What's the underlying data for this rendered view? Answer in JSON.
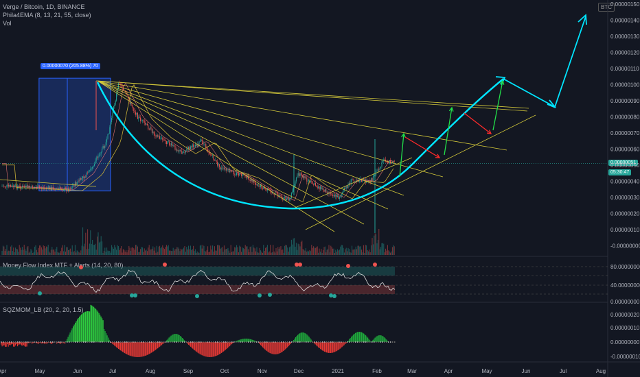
{
  "header": {
    "symbol": "Verge / Bitcoin, 1D, BINANCE",
    "indicator1": "Phila4EMA (8, 13, 21, 55, close)",
    "indicator2": "Vol",
    "currency_badge": "BTC"
  },
  "price_axis": {
    "labels": [
      "0.00000150",
      "0.00000140",
      "0.00000130",
      "0.00000120",
      "0.00000110",
      "0.00000100",
      "0.00000090",
      "0.00000080",
      "0.00000070",
      "0.00000060",
      "0.00000050",
      "0.00000040",
      "0.00000030",
      "0.00000020",
      "0.00000010",
      "-0.00000000"
    ],
    "last_price": "0.00000051",
    "countdown": "05:30:47"
  },
  "mfi_panel": {
    "title": "Money Flow Index MTF + Alerts (14, 20, 80)",
    "labels": [
      "80.00000000",
      "40.00000000",
      "0.00000000"
    ]
  },
  "mom_panel": {
    "title": "SQZMOM_LB (20, 2, 20, 1.5)",
    "labels": [
      "0.00000020",
      "0.00000010",
      "0.00000000",
      "-0.00000010"
    ]
  },
  "measure_label": "0.00000070 (205.88%) 70",
  "time_axis": [
    "Apr",
    "May",
    "Jun",
    "Jul",
    "Aug",
    "Sep",
    "Oct",
    "Nov",
    "Dec",
    "2021",
    "Feb",
    "Mar",
    "Apr",
    "May",
    "Jun",
    "Jul",
    "Aug"
  ],
  "colors": {
    "background": "#131722",
    "up": "#26a69a",
    "down": "#ef5350",
    "curve": "#00e5ff",
    "fan": "#d4c93a",
    "green_arrow": "#22e04a",
    "red_arrow": "#ff2a2a",
    "measure_box": "#2962ff"
  },
  "chart_data": {
    "type": "candlestick",
    "pair": "XVG/BTC",
    "timeframe": "1D",
    "ylim": [
      0,
      1.5e-06
    ],
    "close_path_dates": [
      "2020-04",
      "2020-05",
      "2020-05-25",
      "2020-06-10",
      "2020-06-25",
      "2020-07-05",
      "2020-07-20",
      "2020-08-05",
      "2020-08-25",
      "2020-09-10",
      "2020-09-25",
      "2020-10-15",
      "2020-11-01",
      "2020-11-20",
      "2020-11-27",
      "2020-12-10",
      "2020-12-30",
      "2021-01-10",
      "2021-01-25",
      "2021-02-05",
      "2021-02-15"
    ],
    "close_path_values": [
      3.7e-07,
      3.6e-07,
      3.5e-07,
      4.5e-07,
      6.5e-07,
      1.02e-06,
      8e-07,
      6.8e-07,
      5.8e-07,
      6.5e-07,
      4.8e-07,
      4.3e-07,
      3.5e-07,
      2.8e-07,
      4.5e-07,
      3.8e-07,
      3e-07,
      4.1e-07,
      4e-07,
      5.3e-07,
      5.1e-07
    ],
    "measure": {
      "from_date": "2020-05-01",
      "to_date": "2020-06-28",
      "low": 3.4e-07,
      "high": 1.04e-06
    },
    "projection": {
      "dates": [
        "2021-02-20",
        "2021-05-15",
        "2021-06-28",
        "2021-07-20"
      ],
      "values": [
        6e-07,
        1.04e-06,
        8.5e-07,
        1.44e-06
      ]
    }
  }
}
